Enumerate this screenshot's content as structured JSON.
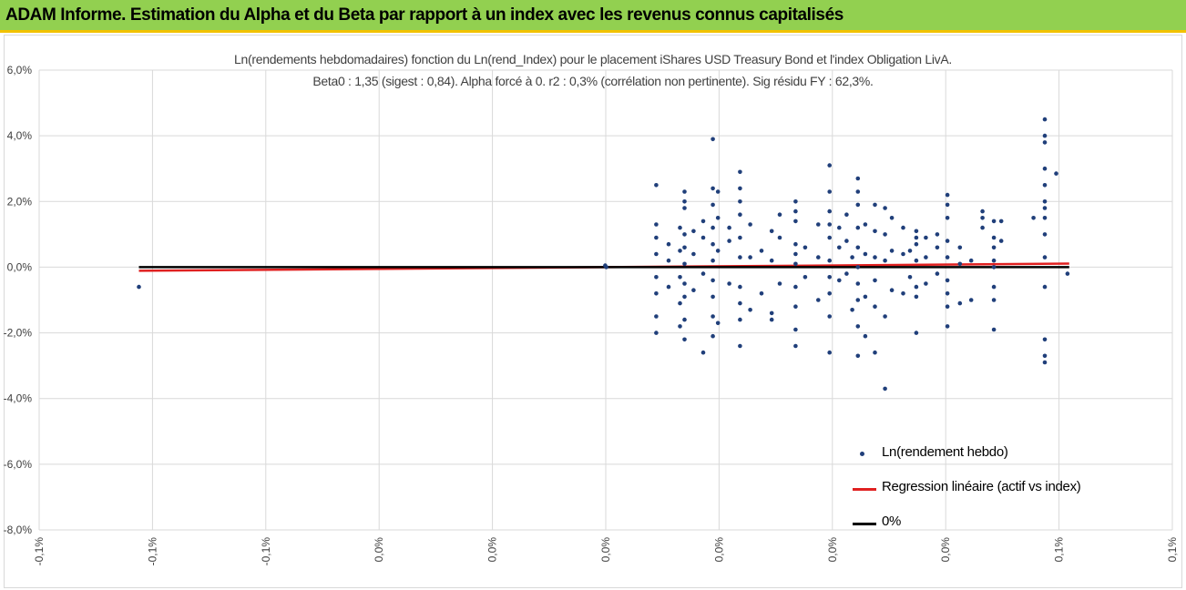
{
  "banner": {
    "title": "ADAM Informe. Estimation du Alpha et du Beta par rapport à un index avec les revenus connus capitalisés"
  },
  "colors": {
    "banner_bg": "#92d050",
    "banner_border": "#f2c200",
    "points": "#203f7a",
    "regression": "#e02020",
    "zero_line": "#000000",
    "grid": "#d9d9d9"
  },
  "chart_data": {
    "type": "scatter",
    "title": "Ln(rendements hebdomadaires) fonction du Ln(rend_Index) pour le placement iShares USD Treasury Bond et l'index Obligation LivA.",
    "subtitle": "Beta0 : 1,35 (sigest : 0,84). Alpha forcé à 0. r2 : 0,3% (corrélation non pertinente). Sig résidu FY : 62,3%.",
    "xlabel": "",
    "ylabel": "",
    "xlim": [
      -0.1,
      0.1
    ],
    "ylim": [
      -8,
      6
    ],
    "y_ticks": [
      {
        "value": 6,
        "label": "6,0%"
      },
      {
        "value": 4,
        "label": "4,0%"
      },
      {
        "value": 2,
        "label": "2,0%"
      },
      {
        "value": 0,
        "label": "0,0%"
      },
      {
        "value": -2,
        "label": "-2,0%"
      },
      {
        "value": -4,
        "label": "-4,0%"
      },
      {
        "value": -6,
        "label": "-6,0%"
      },
      {
        "value": -8,
        "label": "-8,0%"
      }
    ],
    "x_ticks": [
      {
        "value": -0.1,
        "label": "-0,1%"
      },
      {
        "value": -0.08,
        "label": "-0,1%"
      },
      {
        "value": -0.06,
        "label": "-0,1%"
      },
      {
        "value": -0.04,
        "label": "0,0%"
      },
      {
        "value": -0.02,
        "label": "0,0%"
      },
      {
        "value": 0,
        "label": "0,0%"
      },
      {
        "value": 0.02,
        "label": "0,0%"
      },
      {
        "value": 0.04,
        "label": "0,0%"
      },
      {
        "value": 0.06,
        "label": "0,0%"
      },
      {
        "value": 0.08,
        "label": "0,1%"
      },
      {
        "value": 0.1,
        "label": "0,1%"
      }
    ],
    "grid": true,
    "legend_position": "bottom-right",
    "legend": [
      {
        "label": "Ln(rendement hebdo)",
        "kind": "marker",
        "color": "#203f7a"
      },
      {
        "label": "Regression linéaire (actif vs index)",
        "kind": "line",
        "color": "#e02020"
      },
      {
        "label": "0%",
        "kind": "line",
        "color": "#000000"
      }
    ],
    "series": [
      {
        "name": "Ln(rendement hebdo)",
        "kind": "scatter",
        "points": [
          [
            -0.0824,
            -0.6
          ],
          [
            -0.0001,
            0.05
          ],
          [
            0.0001,
            0.0
          ],
          [
            0.0089,
            2.5
          ],
          [
            0.0089,
            -2.0
          ],
          [
            0.0089,
            0.9
          ],
          [
            0.0089,
            0.4
          ],
          [
            0.0089,
            -0.3
          ],
          [
            0.0089,
            -0.8
          ],
          [
            0.0089,
            1.3
          ],
          [
            0.0089,
            -1.5
          ],
          [
            0.0111,
            0.2
          ],
          [
            0.0111,
            -0.6
          ],
          [
            0.0111,
            0.7
          ],
          [
            0.0131,
            0.5
          ],
          [
            0.0131,
            -0.3
          ],
          [
            0.0131,
            1.2
          ],
          [
            0.0131,
            -1.1
          ],
          [
            0.0131,
            -1.8
          ],
          [
            0.0139,
            2.3
          ],
          [
            0.0139,
            -2.2
          ],
          [
            0.0139,
            1.8
          ],
          [
            0.0139,
            -1.6
          ],
          [
            0.0139,
            1.0
          ],
          [
            0.0139,
            0.6
          ],
          [
            0.0139,
            -0.9
          ],
          [
            0.0139,
            0.1
          ],
          [
            0.0139,
            -0.5
          ],
          [
            0.0139,
            2.0
          ],
          [
            0.0155,
            0.4
          ],
          [
            0.0155,
            -0.7
          ],
          [
            0.0155,
            1.1
          ],
          [
            0.0172,
            -2.6
          ],
          [
            0.0172,
            1.4
          ],
          [
            0.0172,
            -0.2
          ],
          [
            0.0172,
            0.9
          ],
          [
            0.0189,
            3.9
          ],
          [
            0.0189,
            2.4
          ],
          [
            0.0189,
            1.9
          ],
          [
            0.0189,
            -2.1
          ],
          [
            0.0189,
            -1.5
          ],
          [
            0.0189,
            1.2
          ],
          [
            0.0189,
            0.7
          ],
          [
            0.0189,
            -0.4
          ],
          [
            0.0189,
            0.2
          ],
          [
            0.0189,
            -0.9
          ],
          [
            0.0198,
            2.3
          ],
          [
            0.0198,
            -1.7
          ],
          [
            0.0198,
            0.5
          ],
          [
            0.0198,
            1.5
          ],
          [
            0.0218,
            1.2
          ],
          [
            0.0218,
            -0.5
          ],
          [
            0.0218,
            0.8
          ],
          [
            0.0237,
            2.9
          ],
          [
            0.0237,
            2.4
          ],
          [
            0.0237,
            -2.4
          ],
          [
            0.0237,
            1.6
          ],
          [
            0.0237,
            -1.1
          ],
          [
            0.0237,
            0.9
          ],
          [
            0.0237,
            0.3
          ],
          [
            0.0237,
            -0.6
          ],
          [
            0.0237,
            2.0
          ],
          [
            0.0237,
            -1.6
          ],
          [
            0.0255,
            0.3
          ],
          [
            0.0255,
            -1.3
          ],
          [
            0.0255,
            1.3
          ],
          [
            0.0275,
            0.5
          ],
          [
            0.0275,
            -0.8
          ],
          [
            0.0293,
            -1.6
          ],
          [
            0.0293,
            1.1
          ],
          [
            0.0293,
            0.2
          ],
          [
            0.0293,
            -1.4
          ],
          [
            0.0307,
            1.6
          ],
          [
            0.0307,
            -0.5
          ],
          [
            0.0307,
            0.9
          ],
          [
            0.0335,
            2.0
          ],
          [
            0.0335,
            -2.4
          ],
          [
            0.0335,
            1.4
          ],
          [
            0.0335,
            -1.9
          ],
          [
            0.0335,
            0.7
          ],
          [
            0.0335,
            0.1
          ],
          [
            0.0335,
            -0.6
          ],
          [
            0.0335,
            -1.2
          ],
          [
            0.0335,
            1.7
          ],
          [
            0.0335,
            0.4
          ],
          [
            0.0352,
            0.6
          ],
          [
            0.0352,
            -0.3
          ],
          [
            0.0375,
            1.3
          ],
          [
            0.0375,
            -1.0
          ],
          [
            0.0375,
            0.3
          ],
          [
            0.0395,
            3.1
          ],
          [
            0.0395,
            2.3
          ],
          [
            0.0395,
            -2.6
          ],
          [
            0.0395,
            1.7
          ],
          [
            0.0395,
            -1.5
          ],
          [
            0.0395,
            0.9
          ],
          [
            0.0395,
            -0.8
          ],
          [
            0.0395,
            0.2
          ],
          [
            0.0395,
            -0.3
          ],
          [
            0.0395,
            1.3
          ],
          [
            0.0412,
            1.2
          ],
          [
            0.0412,
            -0.4
          ],
          [
            0.0412,
            0.6
          ],
          [
            0.0425,
            1.6
          ],
          [
            0.0425,
            -0.2
          ],
          [
            0.0425,
            0.8
          ],
          [
            0.0435,
            0.3
          ],
          [
            0.0435,
            -1.3
          ],
          [
            0.0445,
            2.7
          ],
          [
            0.0445,
            -2.7
          ],
          [
            0.0445,
            1.9
          ],
          [
            0.0445,
            -1.8
          ],
          [
            0.0445,
            1.2
          ],
          [
            0.0445,
            -1.0
          ],
          [
            0.0445,
            0.6
          ],
          [
            0.0445,
            0.0
          ],
          [
            0.0445,
            -0.5
          ],
          [
            0.0445,
            2.3
          ],
          [
            0.0458,
            1.3
          ],
          [
            0.0458,
            -2.1
          ],
          [
            0.0458,
            0.4
          ],
          [
            0.0458,
            -0.9
          ],
          [
            0.0475,
            1.9
          ],
          [
            0.0475,
            -2.6
          ],
          [
            0.0475,
            1.1
          ],
          [
            0.0475,
            -1.2
          ],
          [
            0.0475,
            0.3
          ],
          [
            0.0475,
            -0.4
          ],
          [
            0.0493,
            1.8
          ],
          [
            0.0493,
            -3.7
          ],
          [
            0.0493,
            1.0
          ],
          [
            0.0493,
            -1.5
          ],
          [
            0.0493,
            0.2
          ],
          [
            0.0505,
            1.5
          ],
          [
            0.0505,
            -0.7
          ],
          [
            0.0505,
            0.5
          ],
          [
            0.0525,
            1.2
          ],
          [
            0.0525,
            -0.8
          ],
          [
            0.0525,
            0.4
          ],
          [
            0.0537,
            0.5
          ],
          [
            0.0537,
            -0.3
          ],
          [
            0.0548,
            1.1
          ],
          [
            0.0548,
            -2.0
          ],
          [
            0.0548,
            0.7
          ],
          [
            0.0548,
            -0.6
          ],
          [
            0.0548,
            0.2
          ],
          [
            0.0548,
            -0.9
          ],
          [
            0.0548,
            0.9
          ],
          [
            0.0565,
            0.9
          ],
          [
            0.0565,
            -0.5
          ],
          [
            0.0565,
            0.3
          ],
          [
            0.0585,
            1.0
          ],
          [
            0.0585,
            -0.2
          ],
          [
            0.0585,
            0.6
          ],
          [
            0.0603,
            2.2
          ],
          [
            0.0603,
            -1.8
          ],
          [
            0.0603,
            1.5
          ],
          [
            0.0603,
            -1.2
          ],
          [
            0.0603,
            0.8
          ],
          [
            0.0603,
            -0.4
          ],
          [
            0.0603,
            0.3
          ],
          [
            0.0603,
            -0.8
          ],
          [
            0.0603,
            1.9
          ],
          [
            0.0625,
            -1.1
          ],
          [
            0.0625,
            0.1
          ],
          [
            0.0625,
            0.6
          ],
          [
            0.0645,
            -1.0
          ],
          [
            0.0645,
            0.2
          ],
          [
            0.0665,
            1.5
          ],
          [
            0.0665,
            1.7
          ],
          [
            0.0665,
            1.2
          ],
          [
            0.0685,
            1.4
          ],
          [
            0.0685,
            -1.9
          ],
          [
            0.0685,
            0.9
          ],
          [
            0.0685,
            -0.6
          ],
          [
            0.0685,
            0.2
          ],
          [
            0.0685,
            0.6
          ],
          [
            0.0685,
            -1.0
          ],
          [
            0.0685,
            0.0
          ],
          [
            0.0698,
            1.4
          ],
          [
            0.0698,
            0.8
          ],
          [
            0.0755,
            1.5
          ],
          [
            0.0775,
            4.5
          ],
          [
            0.0775,
            4.0
          ],
          [
            0.0775,
            3.0
          ],
          [
            0.0775,
            2.5
          ],
          [
            0.0775,
            2.0
          ],
          [
            0.0775,
            1.5
          ],
          [
            0.0775,
            1.0
          ],
          [
            0.0775,
            0.3
          ],
          [
            0.0775,
            -0.6
          ],
          [
            0.0775,
            -2.2
          ],
          [
            0.0775,
            -2.7
          ],
          [
            0.0775,
            -2.9
          ],
          [
            0.0775,
            3.8
          ],
          [
            0.0775,
            1.8
          ],
          [
            0.0795,
            2.85
          ],
          [
            0.0815,
            -0.2
          ]
        ]
      },
      {
        "name": "Regression linéaire (actif vs index)",
        "kind": "line",
        "points": [
          [
            -0.0824,
            -0.11
          ],
          [
            0.0818,
            0.11
          ]
        ]
      },
      {
        "name": "0%",
        "kind": "line",
        "points": [
          [
            -0.0824,
            0
          ],
          [
            0.0818,
            0
          ]
        ]
      }
    ]
  }
}
